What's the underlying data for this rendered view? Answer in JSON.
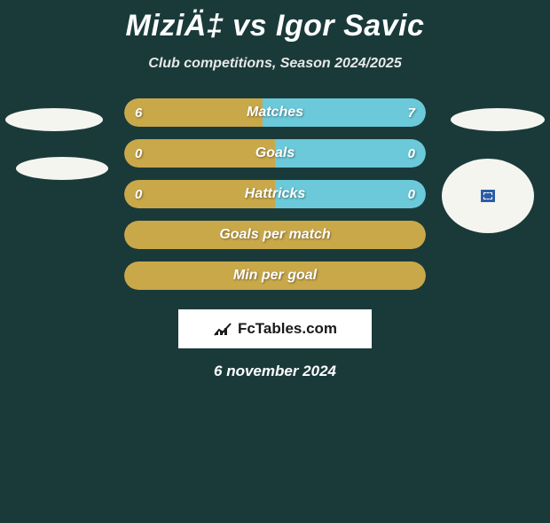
{
  "title": "MiziÄ‡ vs Igor Savic",
  "subtitle": "Club competitions, Season 2024/2025",
  "colors": {
    "background": "#1a3a3a",
    "left_fill": "#c9a84a",
    "right_fill": "#6bc9d9",
    "full_fill": "#c9a84a",
    "text": "#ffffff"
  },
  "bars": [
    {
      "label": "Matches",
      "left": "6",
      "right": "7",
      "left_pct": 46,
      "right_pct": 54,
      "type": "split"
    },
    {
      "label": "Goals",
      "left": "0",
      "right": "0",
      "left_pct": 50,
      "right_pct": 50,
      "type": "split"
    },
    {
      "label": "Hattricks",
      "left": "0",
      "right": "0",
      "left_pct": 50,
      "right_pct": 50,
      "type": "split"
    },
    {
      "label": "Goals per match",
      "type": "full"
    },
    {
      "label": "Min per goal",
      "type": "full"
    }
  ],
  "branding": "FcTables.com",
  "date": "6 november 2024"
}
